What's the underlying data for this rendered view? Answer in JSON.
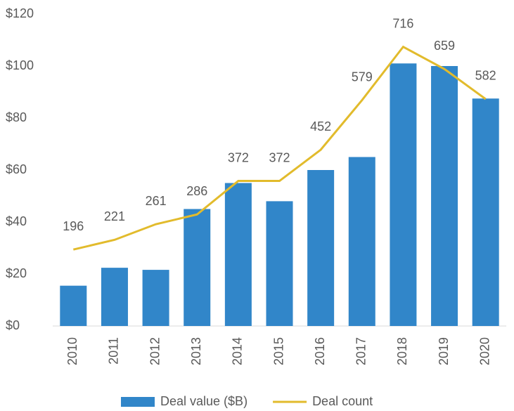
{
  "chart_data": {
    "type": "bar",
    "categories": [
      "2010",
      "2011",
      "2012",
      "2013",
      "2014",
      "2015",
      "2016",
      "2017",
      "2018",
      "2019",
      "2020"
    ],
    "series": [
      {
        "name": "Deal value ($B)",
        "type": "bar",
        "color": "#3186c9",
        "values": [
          15.5,
          22.4,
          21.6,
          45,
          55,
          48,
          60,
          65,
          101,
          100,
          87.5
        ]
      },
      {
        "name": "Deal count",
        "type": "line",
        "axis": "y2",
        "color": "#e2bb2c",
        "values": [
          196,
          221,
          261,
          286,
          372,
          372,
          452,
          579,
          716,
          659,
          582
        ]
      }
    ],
    "ylim": [
      0,
      120
    ],
    "yticks": [
      {
        "value": 0,
        "label": "$0"
      },
      {
        "value": 20,
        "label": "$20"
      },
      {
        "value": 40,
        "label": "$40"
      },
      {
        "value": 60,
        "label": "$60"
      },
      {
        "value": 80,
        "label": "$80"
      },
      {
        "value": 100,
        "label": "$100"
      },
      {
        "value": 120,
        "label": "$120"
      }
    ],
    "y2lim": [
      0,
      800
    ],
    "grid": false,
    "legend": "bottom"
  }
}
